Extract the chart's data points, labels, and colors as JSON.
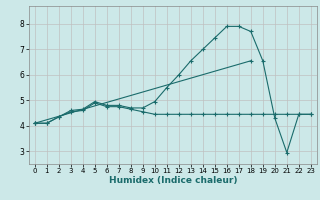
{
  "xlabel": "Humidex (Indice chaleur)",
  "background_color": "#cce8e8",
  "grid_color": "#c0c0c0",
  "line_color": "#1a6b6b",
  "xlim": [
    -0.5,
    23.5
  ],
  "ylim": [
    2.5,
    8.7
  ],
  "yticks": [
    3,
    4,
    5,
    6,
    7,
    8
  ],
  "xticks": [
    0,
    1,
    2,
    3,
    4,
    5,
    6,
    7,
    8,
    9,
    10,
    11,
    12,
    13,
    14,
    15,
    16,
    17,
    18,
    19,
    20,
    21,
    22,
    23
  ],
  "line1_x": [
    0,
    1,
    2,
    3,
    4,
    5,
    6,
    7,
    8,
    9,
    10,
    11,
    12,
    13,
    14,
    15,
    16,
    17,
    18,
    19,
    20,
    21,
    22,
    23
  ],
  "line1_y": [
    4.1,
    4.1,
    4.35,
    4.55,
    4.6,
    4.9,
    4.75,
    4.75,
    4.65,
    4.55,
    4.45,
    4.45,
    4.45,
    4.45,
    4.45,
    4.45,
    4.45,
    4.45,
    4.45,
    4.45,
    4.45,
    4.45,
    4.45,
    4.45
  ],
  "line2_x": [
    0,
    1,
    2,
    3,
    4,
    5,
    6,
    7,
    8,
    9,
    10,
    11,
    12,
    13,
    14,
    15,
    16,
    17,
    18,
    19,
    20,
    21,
    22,
    23
  ],
  "line2_y": [
    4.1,
    4.1,
    4.35,
    4.6,
    4.65,
    4.95,
    4.8,
    4.8,
    4.7,
    4.7,
    4.95,
    5.5,
    6.0,
    6.55,
    7.0,
    7.45,
    7.9,
    7.9,
    7.7,
    6.55,
    4.3,
    2.95,
    4.45,
    4.45
  ],
  "line3_x": [
    0,
    18
  ],
  "line3_y": [
    4.1,
    6.55
  ]
}
